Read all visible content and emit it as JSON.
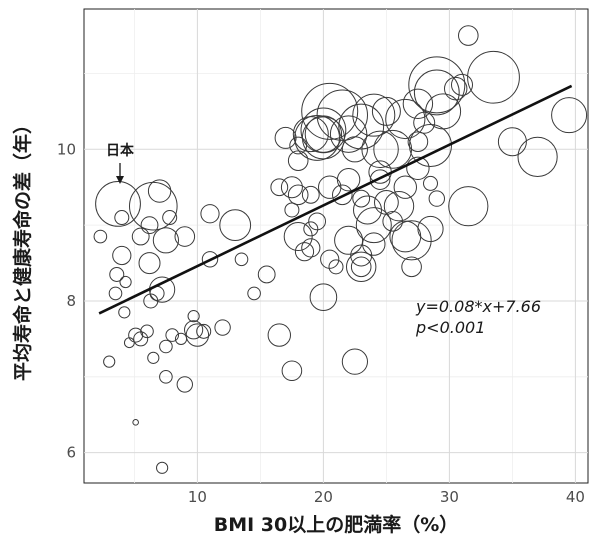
{
  "chart_data": {
    "type": "scatter",
    "xlabel": "BMI 30以上の肥満率（%）",
    "ylabel": "平均寿命と健康寿命の差（年）",
    "xlim": [
      1,
      41
    ],
    "ylim": [
      5.6,
      11.85
    ],
    "x_ticks": [
      10,
      20,
      30,
      40
    ],
    "y_ticks": [
      6,
      8,
      10
    ],
    "grid": true,
    "trendline": {
      "slope": 0.08,
      "intercept": 7.66,
      "x_start": 2.2,
      "x_end": 39.7
    },
    "annotations": {
      "equation": "y=0.08*x+7.66",
      "pvalue": "p<0.001"
    },
    "highlight": {
      "label": "日本",
      "x": 3.7,
      "y": 9.28
    },
    "points": [
      {
        "x": 3.7,
        "y": 9.28,
        "s": 3.2
      },
      {
        "x": 6.5,
        "y": 9.25,
        "s": 3.4
      },
      {
        "x": 7.0,
        "y": 9.45,
        "s": 1.6
      },
      {
        "x": 6.2,
        "y": 9.0,
        "s": 1.2
      },
      {
        "x": 7.8,
        "y": 9.1,
        "s": 1.0
      },
      {
        "x": 4.0,
        "y": 9.1,
        "s": 1.0
      },
      {
        "x": 2.3,
        "y": 8.85,
        "s": 0.9
      },
      {
        "x": 5.5,
        "y": 8.85,
        "s": 1.2
      },
      {
        "x": 7.5,
        "y": 8.8,
        "s": 1.8
      },
      {
        "x": 9.0,
        "y": 8.85,
        "s": 1.4
      },
      {
        "x": 4.0,
        "y": 8.6,
        "s": 1.3
      },
      {
        "x": 6.2,
        "y": 8.5,
        "s": 1.5
      },
      {
        "x": 3.6,
        "y": 8.35,
        "s": 1.0
      },
      {
        "x": 4.3,
        "y": 8.25,
        "s": 0.8
      },
      {
        "x": 3.5,
        "y": 8.1,
        "s": 0.9
      },
      {
        "x": 6.8,
        "y": 8.1,
        "s": 1.0
      },
      {
        "x": 7.2,
        "y": 8.15,
        "s": 1.8
      },
      {
        "x": 6.3,
        "y": 8.0,
        "s": 1.0
      },
      {
        "x": 4.2,
        "y": 7.85,
        "s": 0.8
      },
      {
        "x": 5.1,
        "y": 7.55,
        "s": 1.0
      },
      {
        "x": 5.5,
        "y": 7.5,
        "s": 1.0
      },
      {
        "x": 4.6,
        "y": 7.45,
        "s": 0.7
      },
      {
        "x": 6.0,
        "y": 7.6,
        "s": 0.9
      },
      {
        "x": 7.5,
        "y": 7.4,
        "s": 0.9
      },
      {
        "x": 8.0,
        "y": 7.55,
        "s": 0.9
      },
      {
        "x": 6.5,
        "y": 7.25,
        "s": 0.8
      },
      {
        "x": 8.7,
        "y": 7.5,
        "s": 0.8
      },
      {
        "x": 9.7,
        "y": 7.8,
        "s": 0.8
      },
      {
        "x": 10.0,
        "y": 7.55,
        "s": 1.6
      },
      {
        "x": 9.7,
        "y": 7.62,
        "s": 1.3
      },
      {
        "x": 10.5,
        "y": 7.6,
        "s": 1.0
      },
      {
        "x": 12.0,
        "y": 7.65,
        "s": 1.1
      },
      {
        "x": 3.0,
        "y": 7.2,
        "s": 0.8
      },
      {
        "x": 7.5,
        "y": 7.0,
        "s": 0.9
      },
      {
        "x": 9.0,
        "y": 6.9,
        "s": 1.1
      },
      {
        "x": 5.1,
        "y": 6.4,
        "s": 0.4
      },
      {
        "x": 7.2,
        "y": 5.8,
        "s": 0.8
      },
      {
        "x": 11.0,
        "y": 9.15,
        "s": 1.3
      },
      {
        "x": 11.0,
        "y": 8.55,
        "s": 1.1
      },
      {
        "x": 13.0,
        "y": 9.0,
        "s": 2.2
      },
      {
        "x": 13.5,
        "y": 8.55,
        "s": 0.9
      },
      {
        "x": 14.5,
        "y": 8.1,
        "s": 0.9
      },
      {
        "x": 15.5,
        "y": 8.35,
        "s": 1.2
      },
      {
        "x": 16.5,
        "y": 7.55,
        "s": 1.6
      },
      {
        "x": 17.5,
        "y": 7.08,
        "s": 1.4
      },
      {
        "x": 22.5,
        "y": 7.2,
        "s": 1.8
      },
      {
        "x": 20.0,
        "y": 8.05,
        "s": 1.9
      },
      {
        "x": 18.5,
        "y": 8.65,
        "s": 1.3
      },
      {
        "x": 19.0,
        "y": 8.7,
        "s": 1.3
      },
      {
        "x": 18.0,
        "y": 8.85,
        "s": 2.0
      },
      {
        "x": 20.5,
        "y": 8.55,
        "s": 1.3
      },
      {
        "x": 21.0,
        "y": 8.45,
        "s": 1.0
      },
      {
        "x": 22.0,
        "y": 8.8,
        "s": 2.0
      },
      {
        "x": 23.0,
        "y": 8.6,
        "s": 1.5
      },
      {
        "x": 23.0,
        "y": 8.45,
        "s": 2.1
      },
      {
        "x": 23.0,
        "y": 8.45,
        "s": 1.4
      },
      {
        "x": 24.0,
        "y": 8.75,
        "s": 1.6
      },
      {
        "x": 27.0,
        "y": 8.45,
        "s": 1.4
      },
      {
        "x": 26.5,
        "y": 8.85,
        "s": 2.2
      },
      {
        "x": 27.0,
        "y": 8.8,
        "s": 2.8
      },
      {
        "x": 28.5,
        "y": 8.95,
        "s": 1.8
      },
      {
        "x": 31.5,
        "y": 9.25,
        "s": 2.8
      },
      {
        "x": 16.5,
        "y": 9.5,
        "s": 1.2
      },
      {
        "x": 17.5,
        "y": 9.5,
        "s": 1.5
      },
      {
        "x": 18.0,
        "y": 9.4,
        "s": 1.4
      },
      {
        "x": 17.5,
        "y": 9.2,
        "s": 1.0
      },
      {
        "x": 19.0,
        "y": 9.4,
        "s": 1.2
      },
      {
        "x": 19.5,
        "y": 9.05,
        "s": 1.2
      },
      {
        "x": 19.0,
        "y": 8.95,
        "s": 1.0
      },
      {
        "x": 20.5,
        "y": 9.5,
        "s": 1.6
      },
      {
        "x": 21.5,
        "y": 9.4,
        "s": 1.4
      },
      {
        "x": 22.0,
        "y": 9.6,
        "s": 1.6
      },
      {
        "x": 23.0,
        "y": 9.35,
        "s": 1.2
      },
      {
        "x": 23.5,
        "y": 9.2,
        "s": 2.0
      },
      {
        "x": 24.0,
        "y": 9.0,
        "s": 2.5
      },
      {
        "x": 25.0,
        "y": 9.3,
        "s": 1.7
      },
      {
        "x": 25.5,
        "y": 9.05,
        "s": 1.4
      },
      {
        "x": 26.0,
        "y": 9.25,
        "s": 2.1
      },
      {
        "x": 24.5,
        "y": 9.6,
        "s": 1.4
      },
      {
        "x": 26.5,
        "y": 9.5,
        "s": 1.6
      },
      {
        "x": 27.5,
        "y": 9.75,
        "s": 1.6
      },
      {
        "x": 28.5,
        "y": 9.55,
        "s": 1.0
      },
      {
        "x": 29.0,
        "y": 9.35,
        "s": 1.1
      },
      {
        "x": 17.0,
        "y": 10.15,
        "s": 1.5
      },
      {
        "x": 18.0,
        "y": 10.05,
        "s": 1.2
      },
      {
        "x": 18.0,
        "y": 9.85,
        "s": 1.4
      },
      {
        "x": 19.0,
        "y": 10.2,
        "s": 2.5
      },
      {
        "x": 20.0,
        "y": 10.25,
        "s": 3.2
      },
      {
        "x": 20.5,
        "y": 10.5,
        "s": 4.0
      },
      {
        "x": 21.5,
        "y": 10.45,
        "s": 3.6
      },
      {
        "x": 19.5,
        "y": 10.15,
        "s": 3.2
      },
      {
        "x": 20.0,
        "y": 10.2,
        "s": 2.6
      },
      {
        "x": 20.0,
        "y": 10.15,
        "s": 3.0
      },
      {
        "x": 22.0,
        "y": 10.2,
        "s": 2.6
      },
      {
        "x": 22.5,
        "y": 10.0,
        "s": 1.8
      },
      {
        "x": 23.0,
        "y": 10.3,
        "s": 3.2
      },
      {
        "x": 24.0,
        "y": 10.45,
        "s": 3.0
      },
      {
        "x": 24.5,
        "y": 10.0,
        "s": 2.6
      },
      {
        "x": 24.5,
        "y": 9.7,
        "s": 1.6
      },
      {
        "x": 25.5,
        "y": 10.0,
        "s": 2.7
      },
      {
        "x": 25.0,
        "y": 10.5,
        "s": 2.0
      },
      {
        "x": 26.5,
        "y": 10.4,
        "s": 2.8
      },
      {
        "x": 27.5,
        "y": 10.6,
        "s": 2.1
      },
      {
        "x": 27.5,
        "y": 10.1,
        "s": 1.4
      },
      {
        "x": 28.5,
        "y": 10.05,
        "s": 3.0
      },
      {
        "x": 28.0,
        "y": 10.35,
        "s": 1.5
      },
      {
        "x": 29.0,
        "y": 10.75,
        "s": 3.2
      },
      {
        "x": 29.5,
        "y": 10.5,
        "s": 2.5
      },
      {
        "x": 29.0,
        "y": 10.85,
        "s": 4.0
      },
      {
        "x": 30.5,
        "y": 10.8,
        "s": 1.6
      },
      {
        "x": 31.0,
        "y": 10.85,
        "s": 1.5
      },
      {
        "x": 31.5,
        "y": 11.5,
        "s": 1.4
      },
      {
        "x": 33.5,
        "y": 10.95,
        "s": 3.7
      },
      {
        "x": 35.0,
        "y": 10.1,
        "s": 2.0
      },
      {
        "x": 37.0,
        "y": 9.9,
        "s": 2.8
      },
      {
        "x": 39.5,
        "y": 10.45,
        "s": 2.5
      }
    ]
  }
}
